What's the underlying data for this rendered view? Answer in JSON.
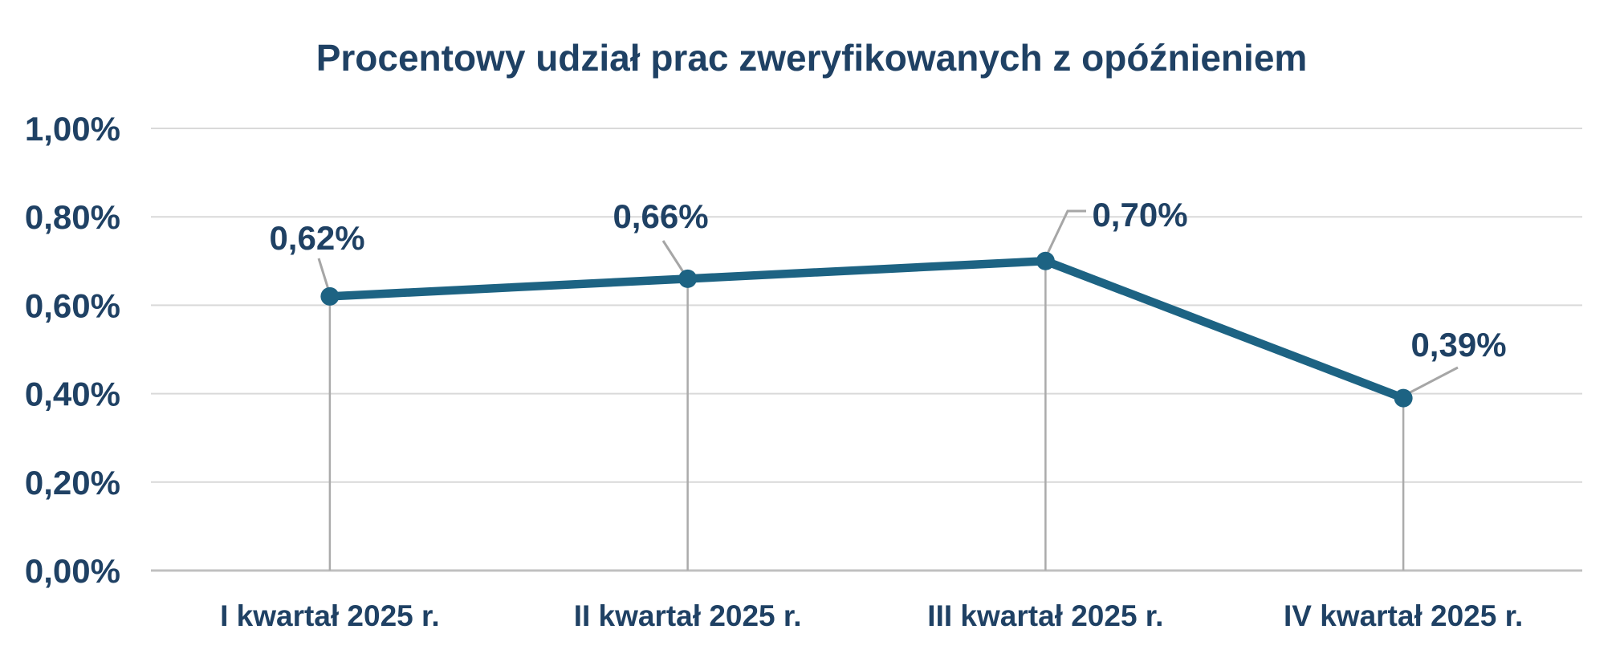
{
  "chart_data": {
    "type": "line",
    "title": "Procentowy udział prac zweryfikowanych z opóźnieniem",
    "categories": [
      "I kwartał 2025 r.",
      "II kwartał 2025 r.",
      "III kwartał 2025 r.",
      "IV kwartał 2025 r."
    ],
    "values": [
      0.62,
      0.66,
      0.7,
      0.39
    ],
    "value_labels": [
      "0,62%",
      "0,66%",
      "0,70%",
      "0,39%"
    ],
    "y_ticks": [
      {
        "value": 0.0,
        "label": "0,00%"
      },
      {
        "value": 0.2,
        "label": "0,20%"
      },
      {
        "value": 0.4,
        "label": "0,40%"
      },
      {
        "value": 0.6,
        "label": "0,60%"
      },
      {
        "value": 0.8,
        "label": "0,80%"
      },
      {
        "value": 1.0,
        "label": "1,00%"
      }
    ],
    "ylim": [
      0,
      1.0
    ],
    "xlabel": "",
    "ylabel": "",
    "grid": "horizontal",
    "legend": "none",
    "marker": "circle",
    "colors": {
      "line": "#1D6383",
      "marker": "#1D6383",
      "gridline": "#D9D9D9",
      "axis_line": "#C0C0C0",
      "drop_line": "#ABABAB",
      "leader_line": "#A6A6A6",
      "text": "#1F4164",
      "title": "#1F4164",
      "background": "#FFFFFF"
    }
  }
}
